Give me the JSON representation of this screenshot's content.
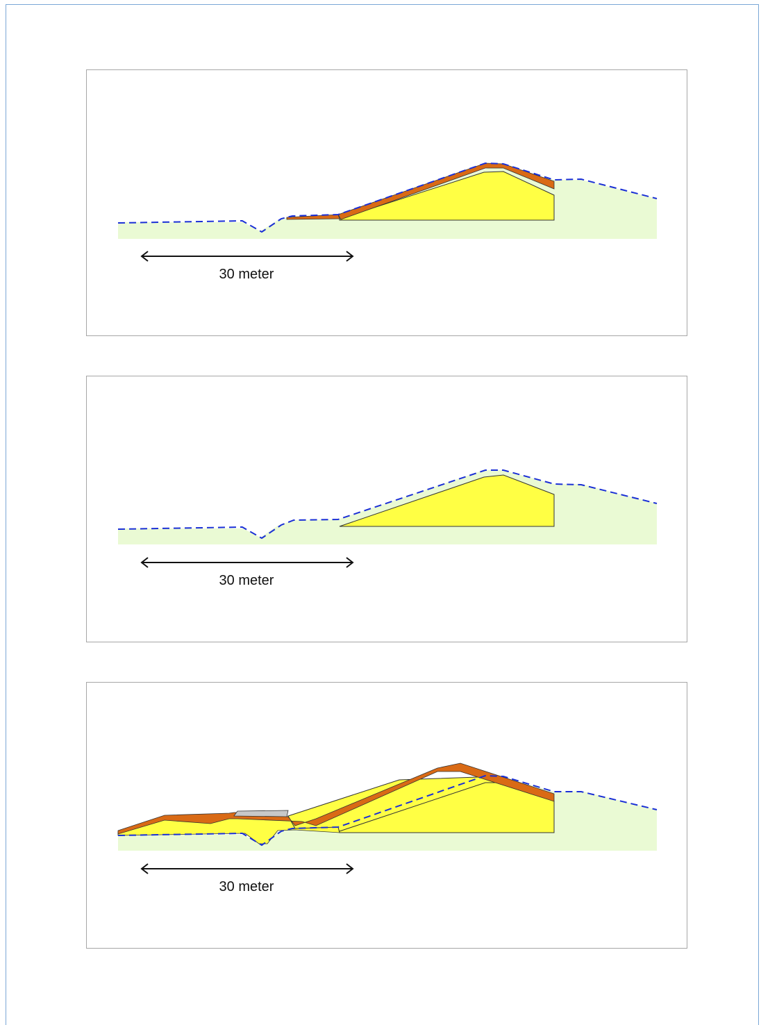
{
  "panels": [
    {
      "scale_label": "30 meter"
    },
    {
      "scale_label": "30 meter"
    },
    {
      "scale_label": "30 meter"
    }
  ],
  "colors": {
    "ground": "#eafad4",
    "sand": "#ffff44",
    "clay": "#d96a15",
    "gravel": "#c8c8c8",
    "profile_line": "#1a2fd6",
    "outline": "#333333",
    "panel_border": "#a6a6a6",
    "page_border": "#7aa7d6"
  }
}
